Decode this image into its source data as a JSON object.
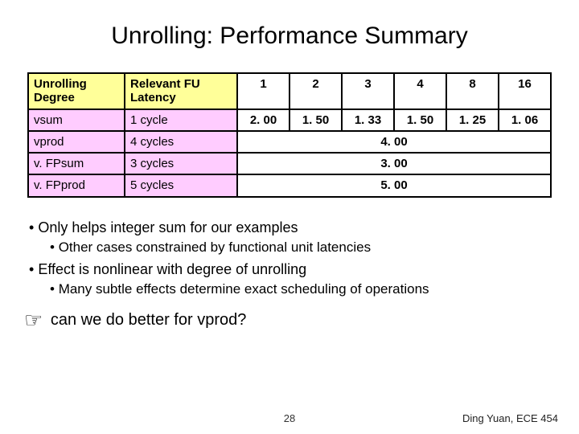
{
  "title": "Unrolling: Performance Summary",
  "table": {
    "hdr_degree": "Unrolling Degree",
    "hdr_latency": "Relevant FU Latency",
    "cols": [
      "1",
      "2",
      "3",
      "4",
      "8",
      "16"
    ],
    "rows": {
      "vsum": {
        "label": "vsum",
        "lat": "1 cycle",
        "vals": [
          "2. 00",
          "1. 50",
          "1. 33",
          "1. 50",
          "1. 25",
          "1. 06"
        ]
      },
      "vprod": {
        "label": "vprod",
        "lat": "4 cycles",
        "merged": "4. 00"
      },
      "vFPsum": {
        "label": "v. FPsum",
        "lat": "3 cycles",
        "merged": "3. 00"
      },
      "vFPprod": {
        "label": "v. FPprod",
        "lat": "5 cycles",
        "merged": "5. 00"
      }
    },
    "colors": {
      "yellow": "#ffff99",
      "pink": "#ffccff"
    }
  },
  "bullets": {
    "b1": "Only helps integer sum for our examples",
    "b1a": "Other cases constrained by functional unit latencies",
    "b2": "Effect is nonlinear with degree of unrolling",
    "b2a": "Many subtle effects determine exact scheduling of operations"
  },
  "callout": "can we do better for vprod?",
  "pagenum": "28",
  "footer": "Ding Yuan, ECE 454"
}
